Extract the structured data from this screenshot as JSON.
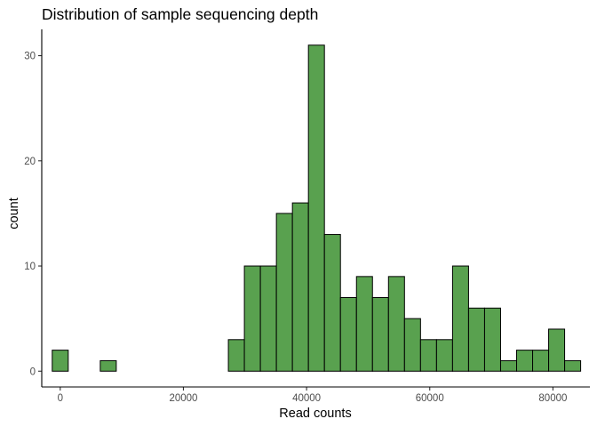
{
  "chart_data": {
    "type": "bar",
    "title": "Distribution of sample sequencing depth",
    "xlabel": "Read counts",
    "ylabel": "count",
    "bar_color": "#59A14F",
    "bar_outline": "#000000",
    "grid": false,
    "xlim": [
      -3000,
      86000
    ],
    "ylim": [
      -1.5,
      32.5
    ],
    "x_ticks": [
      0,
      20000,
      40000,
      60000,
      80000
    ],
    "x_tick_labels": [
      "0",
      "20000",
      "40000",
      "60000",
      "80000"
    ],
    "y_ticks": [
      0,
      10,
      20,
      30
    ],
    "y_tick_labels": [
      "0",
      "10",
      "20",
      "30"
    ],
    "bin_width": 2600,
    "bins": [
      {
        "x": 0,
        "count": 2
      },
      {
        "x": 7800,
        "count": 1
      },
      {
        "x": 28600,
        "count": 3
      },
      {
        "x": 31200,
        "count": 10
      },
      {
        "x": 33800,
        "count": 10
      },
      {
        "x": 36400,
        "count": 15
      },
      {
        "x": 39000,
        "count": 16
      },
      {
        "x": 41600,
        "count": 31
      },
      {
        "x": 44200,
        "count": 13
      },
      {
        "x": 46800,
        "count": 7
      },
      {
        "x": 49400,
        "count": 9
      },
      {
        "x": 52000,
        "count": 7
      },
      {
        "x": 54600,
        "count": 9
      },
      {
        "x": 57200,
        "count": 5
      },
      {
        "x": 59800,
        "count": 3
      },
      {
        "x": 62400,
        "count": 3
      },
      {
        "x": 65000,
        "count": 10
      },
      {
        "x": 67600,
        "count": 6
      },
      {
        "x": 70200,
        "count": 6
      },
      {
        "x": 72800,
        "count": 1
      },
      {
        "x": 75400,
        "count": 2
      },
      {
        "x": 78000,
        "count": 2
      },
      {
        "x": 80600,
        "count": 4
      },
      {
        "x": 83200,
        "count": 1
      }
    ]
  }
}
